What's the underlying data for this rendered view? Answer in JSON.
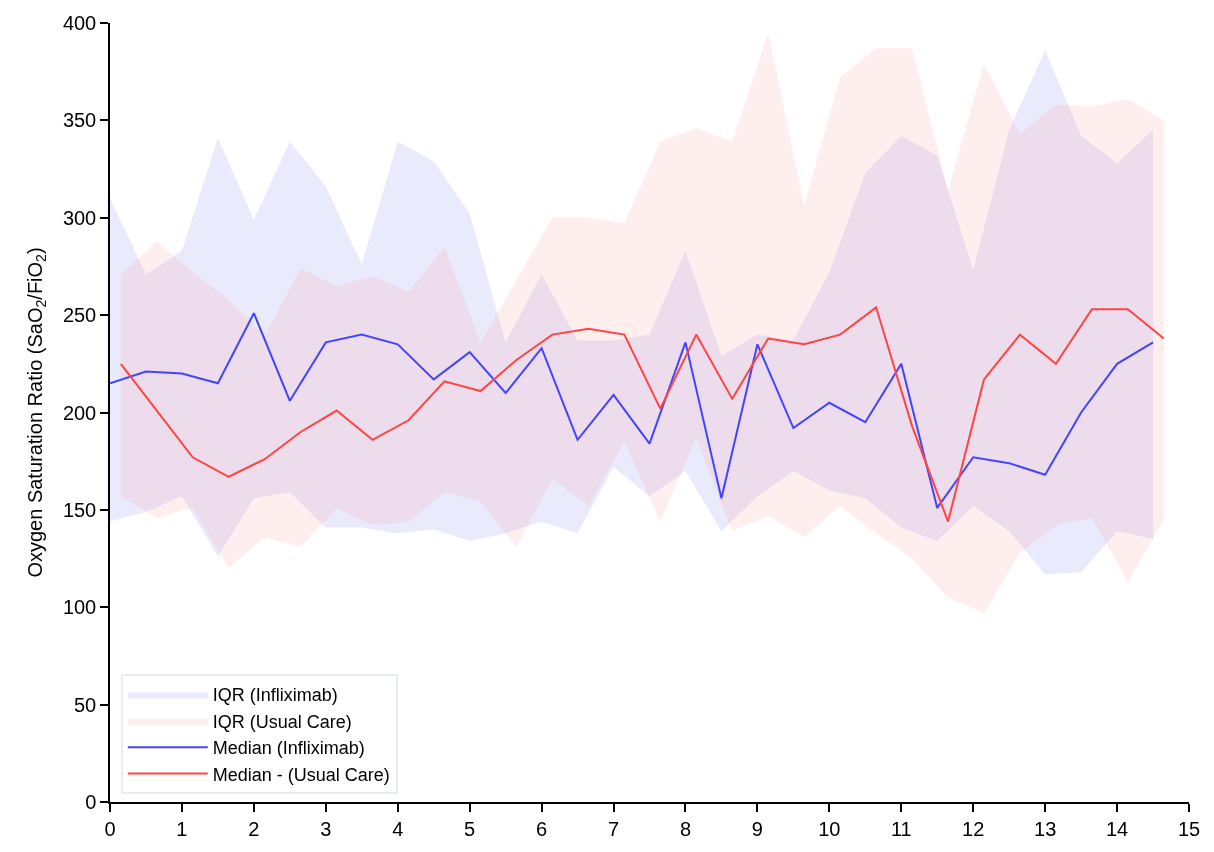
{
  "chart_data": {
    "type": "line",
    "ylabel": "Oxygen Saturation Ratio (SaO$_{2}$/FiO$_{2}$)",
    "xlim": [
      0,
      15
    ],
    "xticks": [
      0,
      1,
      2,
      3,
      4,
      5,
      6,
      7,
      8,
      9,
      10,
      11,
      12,
      13,
      14,
      15
    ],
    "ylim": [
      0,
      400
    ],
    "yticks": [
      0,
      50,
      100,
      150,
      200,
      250,
      300,
      350,
      400
    ],
    "legend": "bottom left",
    "series": [
      {
        "name": "IQR (Infliximab)",
        "type": "area",
        "color": "#6a6af0",
        "x": [
          0,
          0.5,
          1,
          1.5,
          2,
          2.5,
          3,
          3.5,
          4,
          4.5,
          5,
          5.5,
          6,
          6.5,
          7,
          7.5,
          8,
          8.5,
          9,
          9.5,
          10,
          10.5,
          11,
          11.5,
          12,
          12.5,
          13,
          13.5,
          14,
          14.5
        ],
        "values": [
          null,
          null,
          null,
          null,
          null,
          null,
          null,
          null,
          null,
          null,
          null,
          null,
          null,
          null,
          null,
          null,
          null,
          null,
          null,
          null,
          null,
          null,
          null,
          null,
          null,
          null,
          null,
          null,
          null,
          null
        ],
        "lower": [
          144,
          149,
          157,
          126,
          156,
          159,
          141,
          141,
          138,
          140,
          134,
          138,
          144,
          138,
          172,
          157,
          170,
          139,
          157,
          170,
          160,
          156,
          141,
          134,
          152,
          139,
          117,
          118,
          139,
          135
        ],
        "upper": [
          310,
          271,
          283,
          341,
          299,
          339,
          316,
          276,
          339,
          329,
          302,
          236,
          271,
          237,
          237,
          240,
          283,
          229,
          240,
          237,
          272,
          323,
          342,
          332,
          273,
          345,
          386,
          342,
          328,
          345
        ]
      },
      {
        "name": "IQR (Usual Care)",
        "type": "area",
        "color": "#ff8a8a",
        "x": [
          0.15,
          0.65,
          1.15,
          1.65,
          2.15,
          2.65,
          3.15,
          3.65,
          4.15,
          4.65,
          5.15,
          5.65,
          6.15,
          6.65,
          7.15,
          7.65,
          8.15,
          8.65,
          9.15,
          9.65,
          10.15,
          10.65,
          11.15,
          11.65,
          12.15,
          12.65,
          13.15,
          13.65,
          14.15,
          14.65
        ],
        "values": [
          null,
          null,
          null,
          null,
          null,
          null,
          null,
          null,
          null,
          null,
          null,
          null,
          null,
          null,
          null,
          null,
          null,
          null,
          null,
          null,
          null,
          null,
          null,
          null,
          null,
          null,
          null,
          null,
          null,
          null
        ],
        "lower": [
          157,
          146,
          151,
          120,
          136,
          131,
          151,
          142,
          144,
          159,
          154,
          131,
          166,
          152,
          185,
          144,
          187,
          139,
          147,
          136,
          152,
          138,
          125,
          105,
          97,
          128,
          142,
          146,
          113,
          145
        ],
        "upper": [
          271,
          288,
          272,
          258,
          239,
          274,
          265,
          270,
          262,
          285,
          236,
          268,
          300,
          300,
          297,
          339,
          346,
          339,
          395,
          306,
          372,
          387,
          387,
          314,
          379,
          343,
          358,
          357,
          361,
          350
        ]
      },
      {
        "name": "Median (Infliximab)",
        "type": "line",
        "color": "#4444ff",
        "x": [
          0,
          0.5,
          1,
          1.5,
          2,
          2.5,
          3,
          3.5,
          4,
          4.5,
          5,
          5.5,
          6,
          6.5,
          7,
          7.5,
          8,
          8.5,
          9,
          9.5,
          10,
          10.5,
          11,
          11.5,
          12,
          12.5,
          13,
          13.5,
          14,
          14.5
        ],
        "values": [
          215,
          221,
          220,
          215,
          251,
          206,
          236,
          240,
          235,
          217,
          231,
          210,
          233,
          186,
          209,
          184,
          236,
          156,
          235,
          192,
          205,
          195,
          225,
          151,
          177,
          174,
          168,
          200,
          225,
          236
        ]
      },
      {
        "name": "Median - (Usual Care)",
        "type": "line",
        "color": "#ff4444",
        "x": [
          0.15,
          0.65,
          1.15,
          1.65,
          2.15,
          2.65,
          3.15,
          3.65,
          4.15,
          4.65,
          5.15,
          5.65,
          6.15,
          6.65,
          7.15,
          7.65,
          8.15,
          8.65,
          9.15,
          9.65,
          10.15,
          10.65,
          11.15,
          11.65,
          12.15,
          12.65,
          13.15,
          13.65,
          14.15,
          14.65
        ],
        "values": [
          225,
          201,
          177,
          167,
          176,
          190,
          201,
          186,
          196,
          216,
          211,
          227,
          240,
          243,
          240,
          202,
          240,
          207,
          238,
          235,
          240,
          254,
          193,
          144,
          217,
          240,
          225,
          253,
          253,
          238
        ]
      }
    ]
  }
}
